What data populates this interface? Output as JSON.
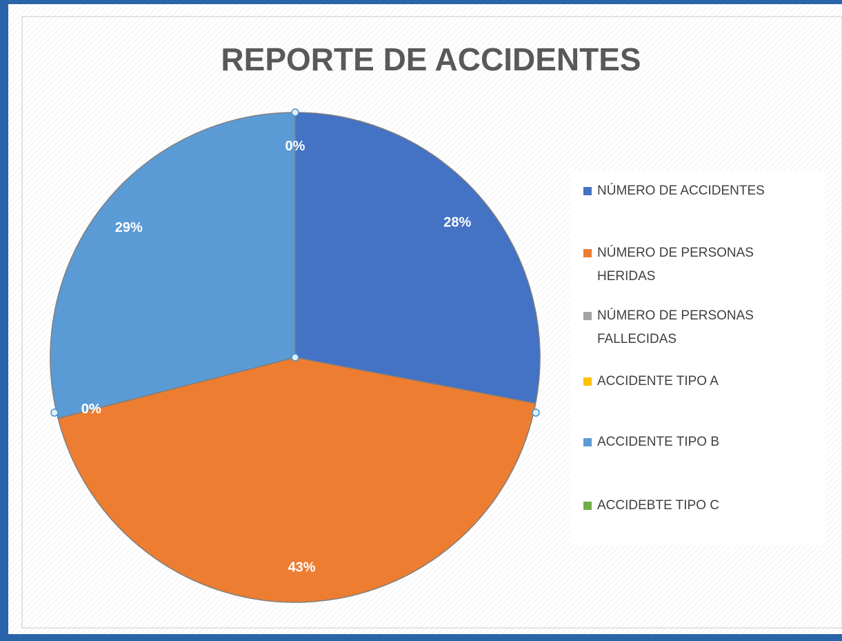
{
  "chart_data": {
    "type": "pie",
    "title": "REPORTE DE ACCIDENTES",
    "categories": [
      "NÚMERO DE ACCIDENTES",
      "NÚMERO DE PERSONAS HERIDAS",
      "NÚMERO DE PERSONAS FALLECIDAS",
      "ACCIDENTE TIPO A",
      "ACCIDENTE TIPO B",
      "ACCIDEBTE TIPO C"
    ],
    "values": [
      28,
      43,
      0,
      0,
      29,
      0
    ],
    "value_labels": [
      "28%",
      "43%",
      "0%",
      "0%",
      "29%",
      "0%"
    ],
    "colors": [
      "#4472c4",
      "#ed7d31",
      "#a5a5a5",
      "#ffc000",
      "#5b9bd5",
      "#70ad47"
    ],
    "legend": "right"
  }
}
